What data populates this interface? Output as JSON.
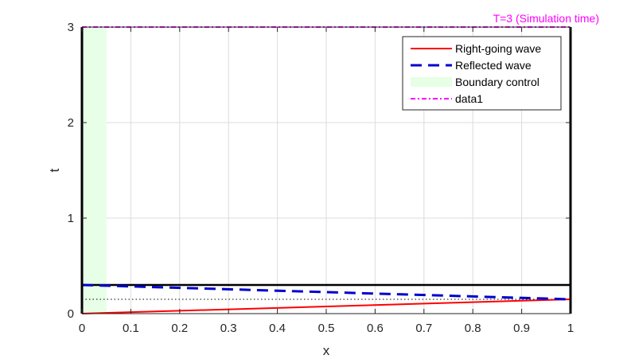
{
  "chart_data": {
    "type": "line",
    "xlabel": "x",
    "ylabel": "t",
    "xlim": [
      0,
      1
    ],
    "ylim": [
      0,
      3
    ],
    "xticks": [
      "0",
      "0.1",
      "0.2",
      "0.3",
      "0.4",
      "0.5",
      "0.6",
      "0.7",
      "0.8",
      "0.9",
      "1"
    ],
    "yticks": [
      "0",
      "1",
      "2",
      "3"
    ],
    "grid": true,
    "legend_position": "top-right",
    "series": [
      {
        "name": "Right-going wave",
        "color": "#ff0000",
        "style": "solid",
        "x": [
          0,
          1
        ],
        "y": [
          0,
          0.15
        ]
      },
      {
        "name": "Reflected wave",
        "color": "#0000cc",
        "style": "dashed",
        "x": [
          0,
          1
        ],
        "y": [
          0.3,
          0.15
        ]
      },
      {
        "name": "data1",
        "color": "#ff00ff",
        "style": "dash-dot",
        "x": [
          0,
          1
        ],
        "y": [
          3,
          3
        ]
      }
    ],
    "boundary_control": {
      "name": "Boundary control",
      "color": "#e6ffe6",
      "x": [
        0,
        0.05
      ],
      "y": [
        0,
        3
      ]
    },
    "horizontal_lines": [
      {
        "y": 0.3,
        "color": "#000000",
        "style": "solid"
      },
      {
        "y": 0.15,
        "color": "#000000",
        "style": "dotted"
      }
    ],
    "annotation": {
      "text": "T=3 (Simulation time)",
      "color": "#ff00ff",
      "anchor": "top-right"
    }
  }
}
